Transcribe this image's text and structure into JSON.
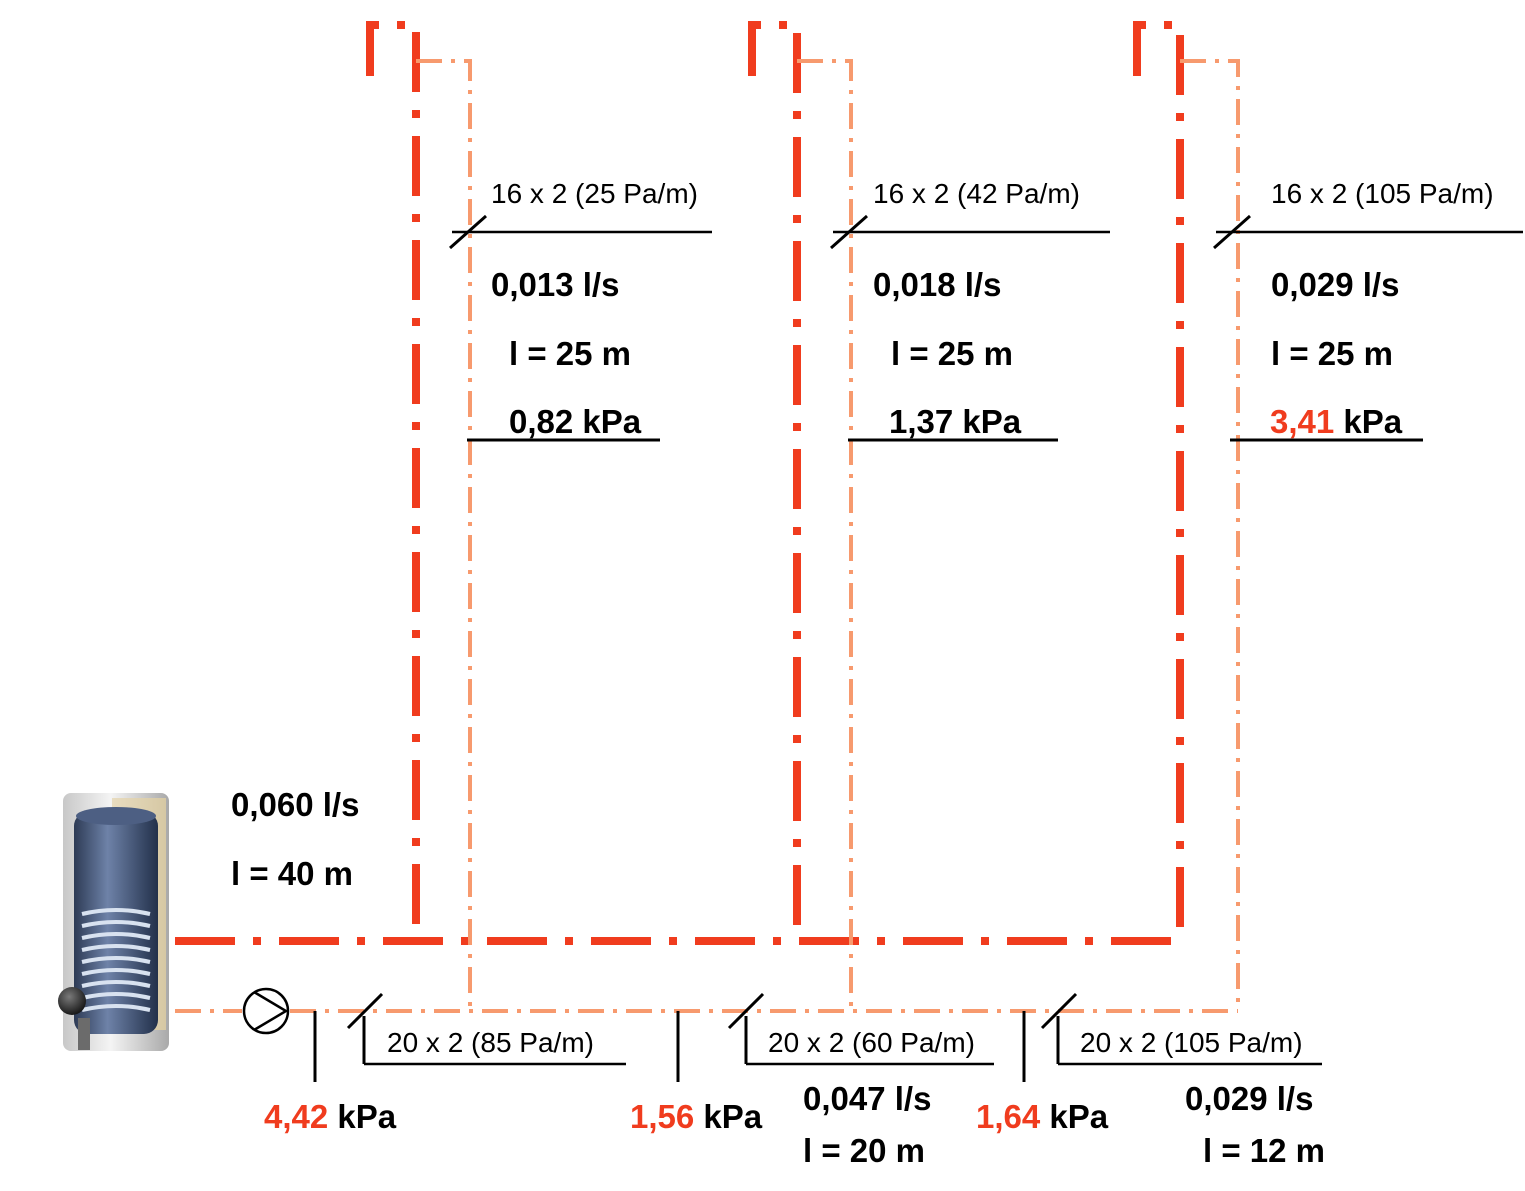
{
  "colors": {
    "supply_pipe": "#f03c1e",
    "return_pipe": "#f79a6e",
    "highlight_text": "#f03c1e",
    "text": "#000000"
  },
  "icons": {
    "heater": "hot-water-storage-tank",
    "pump": "circulation-pump-symbol"
  },
  "risers": [
    {
      "pipe_spec": "16 x 2 (25 Pa/m)",
      "flow": "0,013 l/s",
      "length": "l = 25 m",
      "pressure_value": "0,82",
      "pressure_unit": "kPa",
      "pressure_highlight": false
    },
    {
      "pipe_spec": "16 x 2 (42 Pa/m)",
      "flow": "0,018 l/s",
      "length": "l = 25 m",
      "pressure_value": "1,37",
      "pressure_unit": "kPa",
      "pressure_highlight": false
    },
    {
      "pipe_spec": "16 x 2 (105 Pa/m)",
      "flow": "0,029 l/s",
      "length": "l = 25 m",
      "pressure_value": "3,41",
      "pressure_unit": "kPa",
      "pressure_highlight": true
    }
  ],
  "main_line": {
    "flow": "0,060 l/s",
    "length": "l = 40 m"
  },
  "segments": [
    {
      "pipe_spec": "20 x 2 (85 Pa/m)"
    },
    {
      "pipe_spec": "20 x 2 (60 Pa/m)",
      "flow": "0,047 l/s",
      "length": "l = 20 m"
    },
    {
      "pipe_spec": "20 x 2 (105 Pa/m)",
      "flow": "0,029 l/s",
      "length": "l = 12 m"
    }
  ],
  "pressure_points": [
    {
      "value": "4,42",
      "unit": "kPa"
    },
    {
      "value": "1,56",
      "unit": "kPa"
    },
    {
      "value": "1,64",
      "unit": "kPa"
    }
  ]
}
